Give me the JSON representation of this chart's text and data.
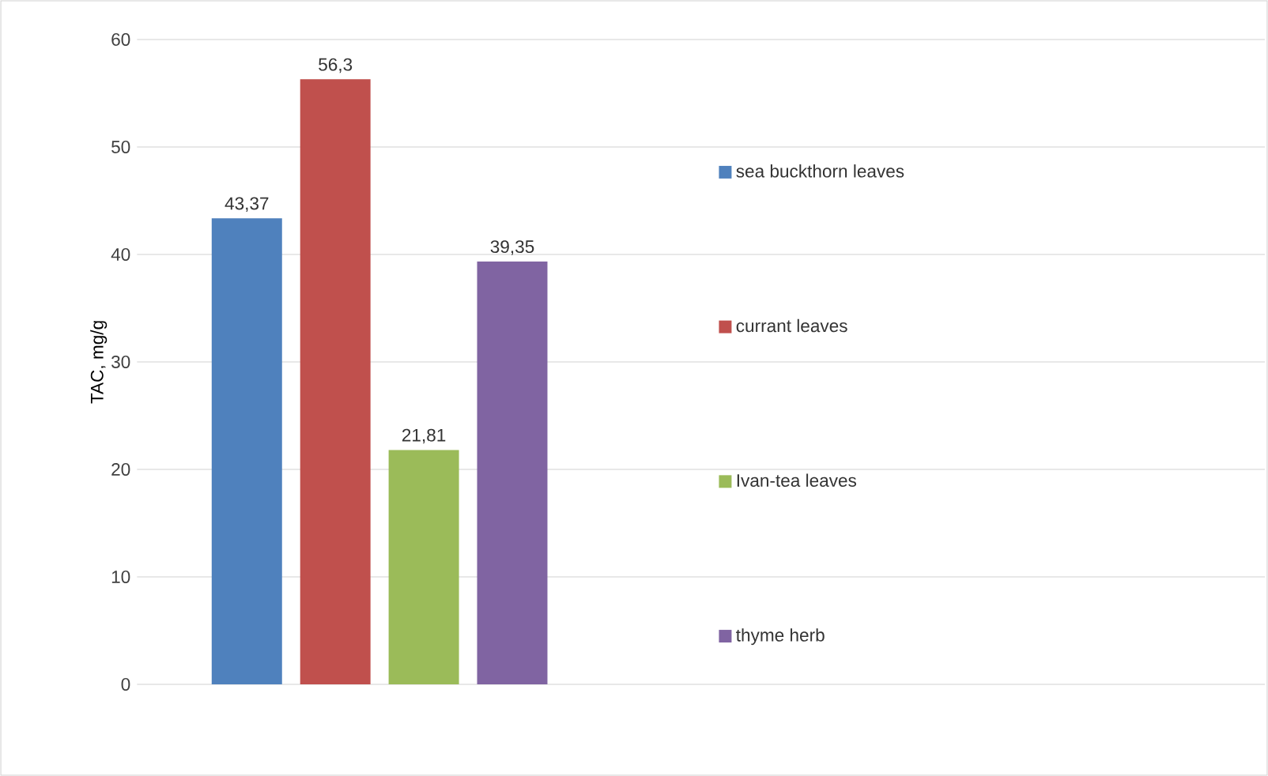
{
  "chart_data": {
    "type": "bar",
    "ylabel": "TAC, mg/g",
    "categories": [
      null
    ],
    "series": [
      {
        "name": "sea buckthorn leaves",
        "color": "#4f81bd",
        "values": [
          43.37
        ],
        "value_labels": [
          "43,37"
        ]
      },
      {
        "name": "currant leaves",
        "color": "#c0504d",
        "values": [
          56.3
        ],
        "value_labels": [
          "56,3"
        ]
      },
      {
        "name": "Ivan-tea leaves",
        "color": "#9bbb59",
        "values": [
          21.81
        ],
        "value_labels": [
          "21,81"
        ]
      },
      {
        "name": "thyme herb",
        "color": "#8064a2",
        "values": [
          39.35
        ],
        "value_labels": [
          "39,35"
        ]
      }
    ],
    "ylim": [
      0,
      60
    ],
    "yticks": [
      0,
      10,
      20,
      30,
      40,
      50,
      60
    ],
    "grid": "y",
    "legend": "right"
  }
}
